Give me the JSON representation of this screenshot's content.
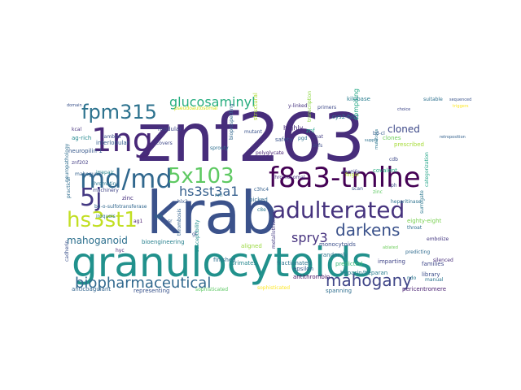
{
  "cloud": {
    "words": [
      {
        "text": "znf263",
        "color": "#472d7b"
      },
      {
        "text": "krab",
        "color": "#3b528b"
      },
      {
        "text": "granulocytoids",
        "color": "#21918c"
      },
      {
        "text": "1ng",
        "color": "#482878"
      },
      {
        "text": "md/md",
        "color": "#31688e"
      },
      {
        "text": "f8a3-tmlhe",
        "color": "#440154"
      },
      {
        "text": "adulterated",
        "color": "#46337e"
      },
      {
        "text": "fpm315",
        "color": "#2c728e"
      },
      {
        "text": "5x103",
        "color": "#5ec962"
      },
      {
        "text": "5j",
        "color": "#443983"
      },
      {
        "text": "hs3st1",
        "color": "#c2df23"
      },
      {
        "text": "darkens",
        "color": "#3b528b"
      },
      {
        "text": "biopharmaceutical",
        "color": "#31688e"
      },
      {
        "text": "mahogany",
        "color": "#404688"
      },
      {
        "text": "hs3st3a1",
        "color": "#355f8d"
      },
      {
        "text": "glucosaminyl",
        "color": "#28ae80"
      },
      {
        "text": "spry3",
        "color": "#46327e"
      },
      {
        "text": "mahoganoid",
        "color": "#2d708e"
      },
      {
        "text": "cloned",
        "color": "#3e4989"
      },
      {
        "text": "prescribed",
        "color": "#a5db36"
      },
      {
        "text": "znf",
        "color": "#1f9e89"
      },
      {
        "text": "highly",
        "color": "#472a7a"
      },
      {
        "text": "safety",
        "color": "#3a548c"
      },
      {
        "text": "cys2-his2",
        "color": "#2a788e"
      },
      {
        "text": "compiling",
        "color": "#22a884"
      },
      {
        "text": "clones",
        "color": "#6ccd5a"
      },
      {
        "text": "kilobase",
        "color": "#287d8e"
      },
      {
        "text": "structural",
        "color": "#addc30"
      },
      {
        "text": "sprouty",
        "color": "#2e6f8e"
      },
      {
        "text": "modular",
        "color": "#3f4788"
      },
      {
        "text": "interlobular",
        "color": "#355e8d"
      },
      {
        "text": "ag-rich",
        "color": "#23888e"
      },
      {
        "text": "neuropilin-1",
        "color": "#38598c"
      },
      {
        "text": "irrepair",
        "color": "#25848e"
      },
      {
        "text": "mahogunin",
        "color": "#34618d"
      },
      {
        "text": "machinery",
        "color": "#414487"
      },
      {
        "text": "zinc",
        "color": "#472f7d"
      },
      {
        "text": "monocytoids",
        "color": "#3c4f8a"
      },
      {
        "text": "fractionated",
        "color": "#2c738e"
      },
      {
        "text": "metallothionein",
        "color": "#443a83"
      },
      {
        "text": "heparin/heparan",
        "color": "#287c8e"
      },
      {
        "text": "epsilon",
        "color": "#365c8d"
      },
      {
        "text": "predicted",
        "color": "#38b977"
      },
      {
        "text": "randomly",
        "color": "#2a768e"
      },
      {
        "text": "imparting",
        "color": "#404588"
      },
      {
        "text": "families",
        "color": "#3f4889"
      },
      {
        "text": "predicting",
        "color": "#2f6b8e"
      },
      {
        "text": "bioengineering",
        "color": "#27808e"
      },
      {
        "text": "primates",
        "color": "#24868e"
      },
      {
        "text": "antithrombin",
        "color": "#471063"
      },
      {
        "text": "susceptibility",
        "color": "#218f8d"
      },
      {
        "text": "finished",
        "color": "#2d718e"
      },
      {
        "text": "anticoagulant",
        "color": "#32648e"
      },
      {
        "text": "representing",
        "color": "#3a548c"
      },
      {
        "text": "sophisticated",
        "color": "#5cc863"
      },
      {
        "text": "spanning",
        "color": "#2e6e8e"
      },
      {
        "text": "pericentromere",
        "color": "#481f70"
      },
      {
        "text": "library",
        "color": "#3d4e8a"
      },
      {
        "text": "silenced",
        "color": "#472c7a"
      },
      {
        "text": "manual",
        "color": "#2b748e"
      },
      {
        "text": "eighty-eight",
        "color": "#7ad151"
      },
      {
        "text": "embolize",
        "color": "#453882"
      },
      {
        "text": "categorization",
        "color": "#20a386"
      },
      {
        "text": "surrogate",
        "color": "#2a778e"
      },
      {
        "text": "motifs",
        "color": "#3e4c8a"
      },
      {
        "text": "covalent",
        "color": "#25ac82"
      },
      {
        "text": "aligned",
        "color": "#99d83d"
      },
      {
        "text": "picked",
        "color": "#30698e"
      },
      {
        "text": "practical",
        "color": "#2f6c8e"
      },
      {
        "text": "neuropathology",
        "color": "#2e6d8e"
      },
      {
        "text": "cadherin",
        "color": "#3b518b"
      },
      {
        "text": "lambda",
        "color": "#3c4f8a"
      },
      {
        "text": "covers",
        "color": "#3f4889"
      },
      {
        "text": "znf202",
        "color": "#433e85"
      },
      {
        "text": "kcal",
        "color": "#46337e"
      },
      {
        "text": "hyc",
        "color": "#482576"
      },
      {
        "text": "hlx2",
        "color": "#38588c"
      },
      {
        "text": "finger",
        "color": "#b5de2b"
      },
      {
        "text": "scan",
        "color": "#3b528b"
      },
      {
        "text": "pgd",
        "color": "#2c718e"
      },
      {
        "text": "znfs",
        "color": "#3d4d8a"
      },
      {
        "text": "coat",
        "color": "#433d84"
      },
      {
        "text": "bd-cl",
        "color": "#365d8d"
      },
      {
        "text": "c8e",
        "color": "#2a778e"
      },
      {
        "text": "ag1",
        "color": "#481c6e"
      },
      {
        "text": "iroquois",
        "color": "#2b758e"
      },
      {
        "text": "b3-o-sulfotransferase",
        "color": "#31678e"
      },
      {
        "text": "chromosomal",
        "color": "#472b7a"
      },
      {
        "text": "polyglycate",
        "color": "#482374"
      },
      {
        "text": "cdb",
        "color": "#3e4a89"
      },
      {
        "text": "heparitinase",
        "color": "#2c728e"
      },
      {
        "text": "c3hc4",
        "color": "#34608d"
      },
      {
        "text": "chromatin",
        "color": "#2b758e"
      },
      {
        "text": "pseudoautosomal",
        "color": "#d8e219"
      },
      {
        "text": "sophisticated",
        "color": "#fde725"
      },
      {
        "text": "gt",
        "color": "#3b528b"
      },
      {
        "text": "ndo",
        "color": "#2a768e"
      },
      {
        "text": "sr",
        "color": "#38598c"
      },
      {
        "text": "throat",
        "color": "#2e6e8e"
      },
      {
        "text": "ph",
        "color": "#3e4a89"
      },
      {
        "text": "y-linked",
        "color": "#46337e"
      },
      {
        "text": "transcription",
        "color": "#8fd744"
      },
      {
        "text": "mutant",
        "color": "#3a548c"
      },
      {
        "text": "zinc",
        "color": "#5ec962"
      },
      {
        "text": "nm",
        "color": "#2c718e"
      },
      {
        "text": "primers",
        "color": "#3e4989"
      },
      {
        "text": "bioprospecting",
        "color": "#31688e"
      },
      {
        "text": "lgb",
        "color": "#2d708e"
      },
      {
        "text": "thrombosis",
        "color": "#33628d"
      },
      {
        "text": "domain",
        "color": "#3b528b"
      },
      {
        "text": "suitable",
        "color": "#2d708e"
      },
      {
        "text": "sequenced",
        "color": "#3a548c"
      },
      {
        "text": "triggers",
        "color": "#fde725"
      },
      {
        "text": "choice",
        "color": "#3f4889"
      },
      {
        "text": "retroposition",
        "color": "#34618d"
      },
      {
        "text": "supply",
        "color": "#2c718e"
      },
      {
        "text": "mutations",
        "color": "#2a768e"
      },
      {
        "text": "ablated",
        "color": "#6ccd5a"
      }
    ]
  }
}
